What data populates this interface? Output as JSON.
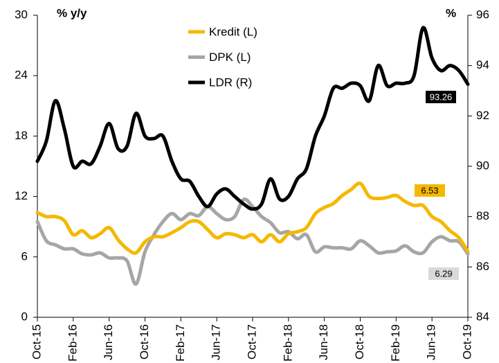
{
  "chart_data": {
    "type": "line",
    "ylabel": "% y/y",
    "y2label": "%",
    "categories": [
      "Oct-15",
      null,
      null,
      null,
      "Feb-16",
      null,
      null,
      null,
      "Jun-16",
      null,
      null,
      null,
      "Oct-16",
      null,
      null,
      null,
      "Feb-17",
      null,
      null,
      null,
      "Jun-17",
      null,
      null,
      null,
      "Oct-17",
      null,
      null,
      null,
      "Feb-18",
      null,
      null,
      null,
      "Jun-18",
      null,
      null,
      null,
      "Oct-18",
      null,
      null,
      null,
      "Feb-19",
      null,
      null,
      null,
      "Jun-19",
      null,
      null,
      null,
      "Oct-19"
    ],
    "series": [
      {
        "name": "Kredit (L)",
        "color": "#f5b800",
        "axis": "y",
        "values": [
          10.4,
          10.0,
          10.0,
          9.6,
          8.2,
          8.6,
          7.9,
          8.3,
          8.9,
          7.7,
          6.8,
          6.4,
          7.5,
          8.0,
          8.0,
          8.4,
          8.9,
          9.5,
          9.5,
          8.7,
          7.9,
          8.3,
          8.2,
          7.9,
          8.2,
          7.5,
          8.2,
          7.5,
          8.3,
          8.5,
          8.9,
          10.3,
          10.9,
          11.3,
          12.1,
          12.7,
          13.3,
          12.0,
          11.8,
          11.9,
          12.1,
          11.5,
          11.1,
          11.1,
          10.0,
          9.5,
          8.6,
          7.9,
          6.53
        ]
      },
      {
        "name": "DPK (L)",
        "color": "#a6a6a6",
        "axis": "y",
        "values": [
          9.5,
          7.6,
          7.2,
          6.8,
          6.8,
          6.3,
          6.2,
          6.4,
          5.9,
          5.9,
          5.6,
          3.3,
          6.5,
          8.2,
          9.5,
          10.3,
          9.7,
          10.3,
          10.1,
          11.0,
          10.3,
          9.7,
          10.0,
          11.7,
          11.0,
          10.0,
          9.4,
          8.4,
          8.5,
          7.8,
          8.2,
          6.5,
          7.0,
          6.9,
          6.9,
          6.8,
          7.6,
          7.1,
          6.4,
          6.5,
          6.6,
          7.1,
          6.5,
          6.4,
          7.5,
          8.0,
          7.6,
          7.5,
          6.29
        ]
      },
      {
        "name": "LDR (R)",
        "color": "#000000",
        "axis": "y2",
        "values": [
          90.2,
          91.0,
          92.6,
          91.5,
          90.0,
          90.2,
          90.1,
          90.8,
          91.7,
          90.7,
          90.8,
          92.1,
          91.2,
          91.1,
          91.2,
          90.2,
          89.5,
          89.4,
          88.8,
          88.4,
          88.9,
          89.1,
          88.8,
          88.5,
          88.3,
          88.5,
          89.5,
          88.7,
          88.8,
          89.5,
          89.9,
          91.2,
          92.0,
          93.1,
          93.1,
          93.3,
          93.2,
          92.6,
          94.0,
          93.2,
          93.3,
          93.3,
          93.6,
          95.5,
          94.3,
          93.8,
          94.0,
          93.8,
          93.26
        ]
      }
    ],
    "ylim": [
      0,
      30
    ],
    "yticks": [
      0,
      6,
      12,
      18,
      24,
      30
    ],
    "y2lim": [
      84,
      96
    ],
    "y2ticks": [
      84,
      86,
      88,
      90,
      92,
      94,
      96
    ],
    "legend": "top"
  }
}
